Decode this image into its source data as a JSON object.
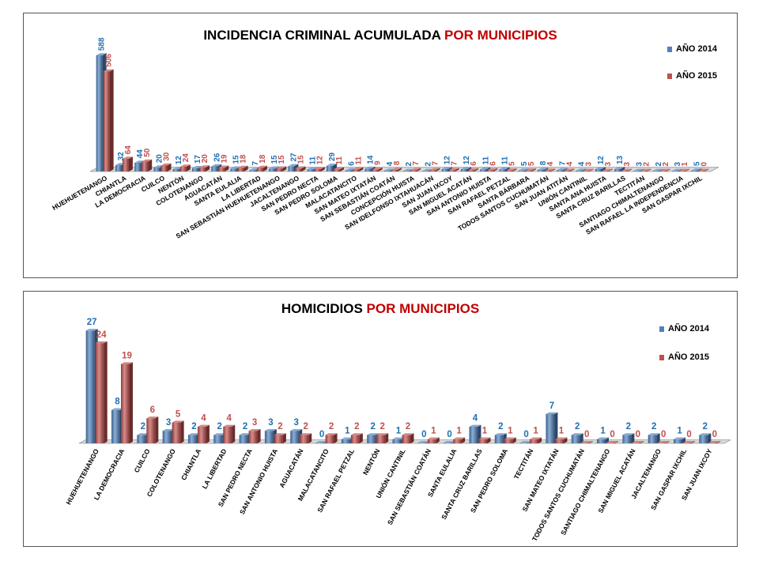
{
  "chart_data": [
    {
      "type": "bar",
      "title": "INCIDENCIA CRIMINAL ACUMULADA",
      "title_highlight": "POR MUNICIPIOS",
      "categories": [
        "HUEHUETENANGO",
        "CHIANTLA",
        "LA DEMOCRACIA",
        "CUILCO",
        "NENTÓN",
        "COLOTENANGO",
        "AGUACATÁN",
        "SANTA EULALIA",
        "LA LIBERTAD",
        "SAN SEBASTIÁN HUEHUETENANGO",
        "JACALTENANGO",
        "SAN PEDRO NECTA",
        "SAN PEDRO SOLOMA",
        "MALACATANCITO",
        "SAN MATEO IXTATÁN",
        "SAN SEBASTIÁN COATÁN",
        "CONCEPCIÓN HUISTA",
        "SAN IDELFONSO IXTAHUACÁN",
        "SAN JUAN IXCOY",
        "SAN MIGUEL ACATÁN",
        "SAN ANTONIO HUISTA",
        "SAN RAFAEL PETZAL",
        "SANTA BÁRBARA",
        "TODOS SANTOS CUCHUMATÁN",
        "SAN JUAN ATITÁN",
        "UNIÓN CANTINIL",
        "SANTA ANA HUISTA",
        "SANTA CRUZ BARILLAS",
        "TECTITÁN",
        "SANTIAGO CHIMALTENANGO",
        "SAN RAFAEL LA INDEPENDENCIA",
        "SAN GASPAR IXCHIL"
      ],
      "series": [
        {
          "name": "AÑO 2014",
          "color": "#4f81bd",
          "values": [
            588,
            32,
            44,
            20,
            12,
            17,
            26,
            15,
            7,
            15,
            27,
            11,
            29,
            6,
            14,
            4,
            2,
            2,
            12,
            12,
            11,
            11,
            5,
            8,
            7,
            4,
            12,
            13,
            3,
            2,
            3,
            5
          ]
        },
        {
          "name": "AÑO 2015",
          "color": "#c0504d",
          "values": [
            506,
            64,
            50,
            30,
            24,
            20,
            19,
            18,
            18,
            15,
            15,
            12,
            11,
            11,
            9,
            8,
            7,
            7,
            7,
            6,
            6,
            5,
            5,
            4,
            4,
            3,
            3,
            3,
            2,
            2,
            1,
            0
          ]
        }
      ],
      "label_colors": {
        "AÑO 2014": "#1f6fb2",
        "AÑO 2015": "#c0504d"
      },
      "ylim": [
        0,
        600
      ],
      "grid": false,
      "legend_position": "right"
    },
    {
      "type": "bar",
      "title": "HOMICIDIOS",
      "title_highlight": "POR MUNICIPIOS",
      "categories": [
        "HUEHUETENANGO",
        "LA DEMOCRACIA",
        "CUILCO",
        "COLOTENANGO",
        "CHIANTLA",
        "LA LIBERTAD",
        "SAN PEDRO NECTA",
        "SAN ANTONIO HUISTA",
        "AGUACATÁN",
        "MALACATANCITO",
        "SAN RAFAEL PETZAL",
        "NENTÓN",
        "UNIÓN CANTINIL",
        "SAN SEBASTIÁN COATÁN",
        "SANTA EULALIA",
        "SANTA CRUZ BARILLAS",
        "SAN PEDRO SOLOMA",
        "TECTITÁN",
        "SAN MATEO IXTATÁN",
        "TODOS SANTOS CUCHUMATÁN",
        "SANTIAGO CHIMALTENANGO",
        "SAN MIGUEL ACATÁN",
        "JACALTENANGO",
        "SAN GASPAR IXCHIL",
        "SAN JUAN IXCOY"
      ],
      "series": [
        {
          "name": "AÑO 2014",
          "color": "#4f81bd",
          "values": [
            27,
            8,
            2,
            3,
            2,
            2,
            2,
            3,
            3,
            0,
            1,
            2,
            1,
            0,
            0,
            4,
            2,
            0,
            7,
            2,
            1,
            2,
            2,
            1,
            2
          ]
        },
        {
          "name": "AÑO 2015",
          "color": "#c0504d",
          "values": [
            24,
            19,
            6,
            5,
            4,
            4,
            3,
            2,
            2,
            2,
            2,
            2,
            2,
            1,
            1,
            1,
            1,
            1,
            1,
            0,
            0,
            0,
            0,
            0,
            0
          ]
        }
      ],
      "label_colors": {
        "AÑO 2014": "#1f6fb2",
        "AÑO 2015": "#c0504d"
      },
      "ylim": [
        0,
        28
      ],
      "grid": false,
      "legend_position": "right"
    }
  ]
}
